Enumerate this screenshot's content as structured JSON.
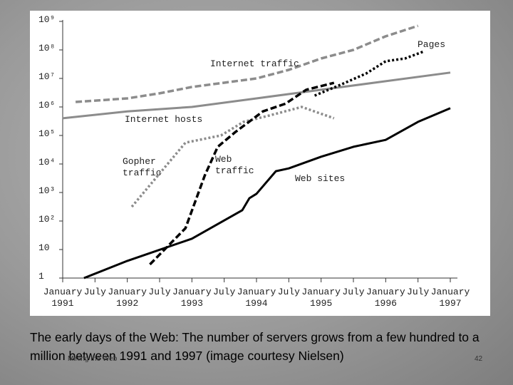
{
  "chart_data": {
    "type": "line",
    "log_scale": "y",
    "xlim": [
      1991,
      1997
    ],
    "ylim": [
      1,
      1000000000
    ],
    "xticks": [
      {
        "value": 1991,
        "label": "January\n1991"
      },
      {
        "value": 1991.5,
        "label": "July"
      },
      {
        "value": 1992,
        "label": "January\n1992"
      },
      {
        "value": 1992.5,
        "label": "July"
      },
      {
        "value": 1993,
        "label": "January\n1993"
      },
      {
        "value": 1993.5,
        "label": "July"
      },
      {
        "value": 1994,
        "label": "January\n1994"
      },
      {
        "value": 1994.5,
        "label": "July"
      },
      {
        "value": 1995,
        "label": "January\n1995"
      },
      {
        "value": 1995.5,
        "label": "July"
      },
      {
        "value": 1996,
        "label": "January\n1996"
      },
      {
        "value": 1996.5,
        "label": "July"
      },
      {
        "value": 1997,
        "label": "January\n1997"
      }
    ],
    "yticks": [
      1,
      10,
      {
        "value": 100,
        "label": "10²"
      },
      {
        "value": 1000,
        "label": "10³"
      },
      {
        "value": 10000,
        "label": "10⁴"
      },
      {
        "value": 100000,
        "label": "10⁵"
      },
      {
        "value": 1000000,
        "label": "10⁶"
      },
      {
        "value": 10000000,
        "label": "10⁷"
      },
      {
        "value": 100000000,
        "label": "10⁸"
      },
      {
        "value": 1000000000,
        "label": "10⁹"
      }
    ],
    "series": [
      {
        "name": "Internet hosts",
        "color": "#8c8c8c",
        "style": "solid",
        "x": [
          1991,
          1992,
          1993,
          1994,
          1995,
          1996,
          1997
        ],
        "values": [
          400000,
          700000,
          1000000,
          2000000,
          4000000,
          8000000,
          16000000
        ]
      },
      {
        "name": "Internet traffic",
        "color": "#8c8c8c",
        "style": "dashed",
        "x": [
          1991.2,
          1992,
          1992.5,
          1993,
          1994,
          1994.5,
          1995,
          1995.5,
          1996,
          1996.5
        ],
        "values": [
          1500000,
          2000000,
          3000000,
          5000000,
          10000000,
          20000000,
          50000000,
          100000000,
          300000000,
          700000000
        ]
      },
      {
        "name": "Gopher traffic",
        "color": "#8c8c8c",
        "style": "dotted",
        "x": [
          1992.07,
          1992.9,
          1993.45,
          1993.8,
          1994.2,
          1994.7,
          1995.2
        ],
        "values": [
          316,
          56000,
          100000,
          300000,
          500000,
          1000000,
          400000
        ]
      },
      {
        "name": "Web traffic",
        "color": "#000000",
        "style": "dashed",
        "x": [
          1992.35,
          1992.9,
          1993.2,
          1993.4,
          1993.67,
          1994.1,
          1994.45,
          1994.77,
          1995.2
        ],
        "values": [
          3,
          56,
          4000,
          40000,
          130000,
          700000,
          1300000,
          4000000,
          7000000
        ]
      },
      {
        "name": "Pages",
        "color": "#000000",
        "style": "dotted",
        "x": [
          1994.9,
          1995.3,
          1995.7,
          1996,
          1996.3,
          1996.6
        ],
        "values": [
          2500000,
          6000000,
          15000000,
          40000000,
          50000000,
          90000000
        ]
      },
      {
        "name": "Web sites",
        "color": "#000000",
        "style": "solid",
        "x": [
          1991.33,
          1992,
          1993,
          1993.78,
          1993.89,
          1994,
          1994.3,
          1994.5,
          1995,
          1995.5,
          1996,
          1996.5,
          1997
        ],
        "values": [
          1,
          4,
          24,
          240,
          630,
          900,
          5600,
          7000,
          18000,
          40000,
          70000,
          300000,
          900000
        ]
      }
    ],
    "annotations": [
      "Internet traffic",
      "Pages",
      "Internet hosts",
      "Gopher\ntraffic",
      "Web\ntraffic",
      "Web sites"
    ]
  },
  "caption": "The early days of the Web: The number of servers grows from a few hundred to a million between 1991 and 1997 (image courtesy Nielsen)",
  "footer": "Mining the Web",
  "page_number": "42"
}
